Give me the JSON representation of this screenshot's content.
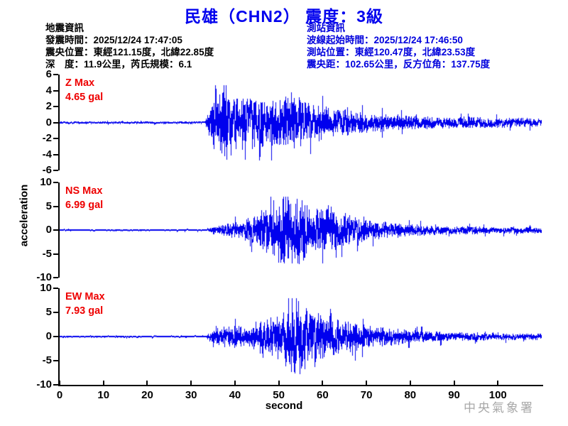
{
  "title": "民雄（CHN2） 震度：3級",
  "quake_info": {
    "heading": "地震資訊",
    "lines": [
      "發震時間：2025/12/24 17:47:05",
      "震央位置：東經121.15度，北緯22.85度",
      "深　度：11.9公里，芮氏規模：6.1"
    ]
  },
  "station_info": {
    "heading": "測站資訊",
    "lines": [
      "波線起始時間：2025/12/24 17:46:50",
      "測站位置：東經120.47度，北緯23.53度",
      "震央距：102.65公里，反方位角：137.75度"
    ]
  },
  "watermark": "中央氣象署",
  "colors": {
    "title_blue": "#0000ee",
    "station_info_blue": "#0000dd",
    "channel_label_red": "#ee0000",
    "trace_blue": "#0000ee",
    "watermark_gray": "#a8a8a8",
    "axis_black": "#000000"
  },
  "chart_data": {
    "type": "line",
    "title": "民雄（CHN2） 震度：3級",
    "xlabel": "second",
    "ylabel": "acceleration",
    "x_range": [
      0,
      110
    ],
    "x_ticks": [
      0,
      10,
      20,
      30,
      40,
      50,
      60,
      70,
      80,
      90,
      100
    ],
    "grid": false,
    "legend": false,
    "trace_color": "#0000ee",
    "event_onset_s": 33.5,
    "panels": [
      {
        "channel": "Z",
        "label_line1": "Z Max",
        "label_line2": "4.65 gal",
        "max_gal": 4.65,
        "peak_time_s": 38,
        "peak_sign": 1,
        "ylim": [
          -6,
          6
        ],
        "y_ticks": [
          6,
          4,
          2,
          0,
          -2,
          -4,
          -6
        ],
        "envelope_gal": [
          [
            0,
            0.12
          ],
          [
            33.2,
            0.12
          ],
          [
            34,
            1.2
          ],
          [
            35,
            2.6
          ],
          [
            36.5,
            3.0
          ],
          [
            38,
            4.65
          ],
          [
            39.5,
            2.9
          ],
          [
            41,
            2.6
          ],
          [
            43,
            3.1
          ],
          [
            45,
            2.4
          ],
          [
            47,
            2.7
          ],
          [
            49,
            2.3
          ],
          [
            51,
            2.8
          ],
          [
            53,
            3.2
          ],
          [
            55,
            2.6
          ],
          [
            57,
            2.0
          ],
          [
            60,
            1.7
          ],
          [
            63,
            1.5
          ],
          [
            66,
            1.3
          ],
          [
            70,
            1.05
          ],
          [
            75,
            0.9
          ],
          [
            80,
            0.75
          ],
          [
            85,
            0.65
          ],
          [
            90,
            0.6
          ],
          [
            95,
            0.55
          ],
          [
            100,
            0.5
          ],
          [
            110,
            0.45
          ]
        ]
      },
      {
        "channel": "NS",
        "label_line1": "NS Max",
        "label_line2": "6.99 gal",
        "max_gal": 6.99,
        "peak_time_s": 53,
        "peak_sign": -1,
        "ylim": [
          -10,
          10
        ],
        "y_ticks": [
          10,
          5,
          0,
          -5,
          -10
        ],
        "envelope_gal": [
          [
            0,
            0.15
          ],
          [
            33.2,
            0.15
          ],
          [
            34.5,
            0.5
          ],
          [
            36,
            0.9
          ],
          [
            38,
            1.2
          ],
          [
            40,
            1.4
          ],
          [
            42,
            1.7
          ],
          [
            44,
            2.4
          ],
          [
            46,
            3.4
          ],
          [
            48,
            5.0
          ],
          [
            50,
            5.6
          ],
          [
            53,
            6.99
          ],
          [
            55,
            5.8
          ],
          [
            57,
            4.6
          ],
          [
            59,
            3.9
          ],
          [
            61,
            4.3
          ],
          [
            63,
            3.6
          ],
          [
            65,
            3.0
          ],
          [
            68,
            2.2
          ],
          [
            72,
            1.7
          ],
          [
            76,
            1.3
          ],
          [
            80,
            1.05
          ],
          [
            85,
            0.85
          ],
          [
            90,
            0.75
          ],
          [
            95,
            0.65
          ],
          [
            100,
            0.6
          ],
          [
            110,
            0.55
          ]
        ]
      },
      {
        "channel": "EW",
        "label_line1": "EW Max",
        "label_line2": "7.93 gal",
        "max_gal": 7.93,
        "peak_time_s": 54,
        "peak_sign": 1,
        "ylim": [
          -10,
          10
        ],
        "y_ticks": [
          10,
          5,
          0,
          -5,
          -10
        ],
        "envelope_gal": [
          [
            0,
            0.15
          ],
          [
            33.2,
            0.15
          ],
          [
            34.5,
            0.9
          ],
          [
            36,
            1.6
          ],
          [
            38,
            1.8
          ],
          [
            40,
            1.9
          ],
          [
            42,
            1.8
          ],
          [
            44,
            2.3
          ],
          [
            46,
            3.1
          ],
          [
            48,
            3.6
          ],
          [
            50,
            4.1
          ],
          [
            52,
            4.7
          ],
          [
            54,
            7.93
          ],
          [
            56,
            5.2
          ],
          [
            58,
            4.6
          ],
          [
            60,
            3.9
          ],
          [
            62,
            3.5
          ],
          [
            64,
            3.1
          ],
          [
            66,
            2.8
          ],
          [
            68,
            2.5
          ],
          [
            70,
            2.1
          ],
          [
            73,
            1.7
          ],
          [
            76,
            1.45
          ],
          [
            80,
            1.2
          ],
          [
            84,
            1.0
          ],
          [
            88,
            0.85
          ],
          [
            93,
            0.7
          ],
          [
            100,
            0.6
          ],
          [
            110,
            0.5
          ]
        ]
      }
    ]
  }
}
